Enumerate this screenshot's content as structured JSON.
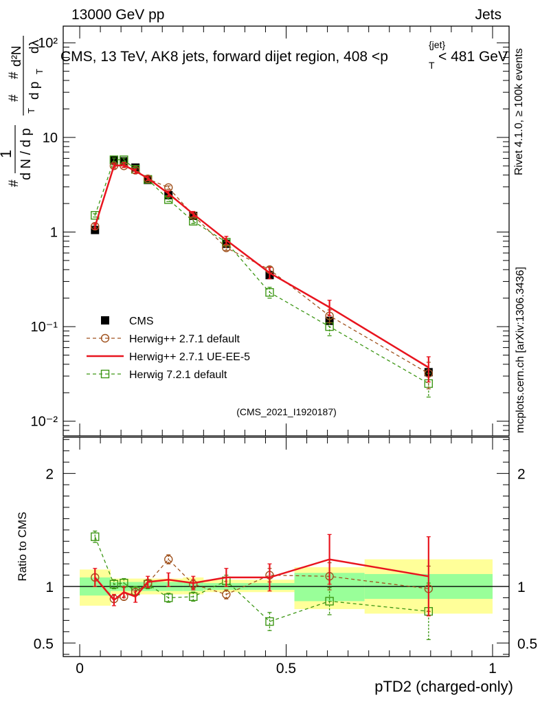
{
  "header": {
    "left": "13000 GeV pp",
    "right": "Jets"
  },
  "side_labels": {
    "rivet": "Rivet 4.1.0, ≥ 100k events",
    "mcplots": "mcplots.cern.ch [arXiv:1306.3436]"
  },
  "colors": {
    "data": "#000000",
    "herwigpp_default": "#a0521e",
    "herwigpp_ueee5": "#e8141e",
    "herwig721": "#3c9614",
    "band_inner": "#99ff99",
    "band_outer": "#ffff99",
    "watermark": "#999999"
  },
  "chart_data": [
    {
      "panel": "main",
      "type": "line",
      "title": "CMS, 13 TeV, AK8 jets, forward dijet region, 408 <p_T^{jet}< 481 GeV",
      "title_parts": {
        "prefix": "CMS, 13 TeV, AK8 jets, forward dijet region, 408 <",
        "p": "p",
        "sub": "T",
        "sup": "{jet}",
        "suffix": "< 481 GeV"
      },
      "ylabel_parts": [
        "#",
        "1",
        "d N / d p",
        "T",
        "#",
        "d p",
        "T",
        "dλ",
        "d²N"
      ],
      "watermark": "(CMS_2021_I1920187)",
      "yscale": "log",
      "ylim": [
        0.007,
        150
      ],
      "xlim": [
        -0.04,
        1.04
      ],
      "ytick_labels": {
        "1e-2": "10⁻²",
        "1e-1": "10⁻¹",
        "1": "1",
        "10": "10",
        "1e2": "10²"
      },
      "legend_position": "bottom-left",
      "series": [
        {
          "name": "CMS",
          "style": "data",
          "x": [
            0.037,
            0.083,
            0.107,
            0.135,
            0.165,
            0.215,
            0.275,
            0.355,
            0.46,
            0.605,
            0.845
          ],
          "y": [
            1.05,
            5.7,
            5.6,
            4.8,
            3.55,
            2.45,
            1.48,
            0.75,
            0.35,
            0.115,
            0.033
          ]
        },
        {
          "name": "Herwig++ 2.7.1 default",
          "style": "dashed-circle",
          "x": [
            0.037,
            0.083,
            0.107,
            0.135,
            0.165,
            0.215,
            0.275,
            0.355,
            0.46,
            0.605,
            0.845
          ],
          "y": [
            1.15,
            5.0,
            5.0,
            4.5,
            3.65,
            2.95,
            1.5,
            0.68,
            0.4,
            0.13,
            0.032
          ],
          "yerr": [
            0.04,
            0.15,
            0.15,
            0.12,
            0.1,
            0.12,
            0.06,
            0.04,
            0.03,
            0.02,
            0.01
          ]
        },
        {
          "name": "Herwig++ 2.7.1 UE-EE-5",
          "style": "solid",
          "x": [
            0.037,
            0.083,
            0.107,
            0.135,
            0.165,
            0.215,
            0.275,
            0.355,
            0.46,
            0.605,
            0.845
          ],
          "y": [
            1.15,
            5.0,
            5.1,
            4.4,
            3.7,
            2.55,
            1.55,
            0.82,
            0.37,
            0.16,
            0.037
          ],
          "yerr": [
            0.08,
            0.3,
            0.3,
            0.25,
            0.2,
            0.18,
            0.1,
            0.08,
            0.05,
            0.03,
            0.011
          ]
        },
        {
          "name": "Herwig 7.2.1 default",
          "style": "dashed-square",
          "x": [
            0.037,
            0.083,
            0.107,
            0.135,
            0.165,
            0.215,
            0.275,
            0.355,
            0.46,
            0.605,
            0.845
          ],
          "y": [
            1.5,
            5.8,
            5.8,
            4.6,
            3.6,
            2.2,
            1.3,
            0.78,
            0.23,
            0.1,
            0.025
          ],
          "yerr": [
            0.06,
            0.25,
            0.25,
            0.2,
            0.12,
            0.1,
            0.07,
            0.05,
            0.03,
            0.02,
            0.007
          ]
        }
      ]
    },
    {
      "panel": "ratio",
      "type": "line",
      "ylabel": "Ratio to CMS",
      "xlabel": "pTD2 (charged-only)",
      "ylim": [
        0.38,
        2.32
      ],
      "xlim": [
        -0.04,
        1.04
      ],
      "yticks": [
        0.5,
        1,
        2
      ],
      "ytick_labels": [
        "0.5",
        "1",
        "2"
      ],
      "xticks": [
        0,
        0.5,
        1
      ],
      "xtick_labels": [
        "0",
        "0.5",
        "1"
      ],
      "bands": [
        {
          "x0": 0.0,
          "x1": 0.075,
          "inner": [
            0.92,
            1.08
          ],
          "outer": [
            0.83,
            1.15
          ]
        },
        {
          "x0": 0.075,
          "x1": 0.25,
          "inner": [
            0.96,
            1.04
          ],
          "outer": [
            0.93,
            1.07
          ]
        },
        {
          "x0": 0.25,
          "x1": 0.3,
          "inner": [
            0.96,
            1.04
          ],
          "outer": [
            0.93,
            1.08
          ]
        },
        {
          "x0": 0.3,
          "x1": 0.41,
          "inner": [
            0.97,
            1.03
          ],
          "outer": [
            0.95,
            1.06
          ]
        },
        {
          "x0": 0.41,
          "x1": 0.52,
          "inner": [
            0.97,
            1.03
          ],
          "outer": [
            0.95,
            1.06
          ]
        },
        {
          "x0": 0.52,
          "x1": 0.69,
          "inner": [
            0.87,
            1.12
          ],
          "outer": [
            0.8,
            1.17
          ]
        },
        {
          "x0": 0.69,
          "x1": 1.0,
          "inner": [
            0.89,
            1.11
          ],
          "outer": [
            0.76,
            1.24
          ]
        }
      ],
      "series": [
        {
          "name": "Herwig++ 2.7.1 default",
          "style": "dashed-circle",
          "x": [
            0.037,
            0.083,
            0.107,
            0.135,
            0.165,
            0.215,
            0.275,
            0.355,
            0.46,
            0.605,
            0.845
          ],
          "y": [
            1.08,
            0.89,
            0.91,
            0.95,
            1.03,
            1.24,
            1.02,
            0.93,
            1.1,
            1.09,
            0.98
          ],
          "yerr": [
            0.03,
            0.03,
            0.03,
            0.03,
            0.03,
            0.04,
            0.04,
            0.04,
            0.06,
            0.12,
            0.2
          ]
        },
        {
          "name": "Herwig++ 2.7.1 UE-EE-5",
          "style": "solid",
          "x": [
            0.037,
            0.083,
            0.107,
            0.135,
            0.165,
            0.215,
            0.275,
            0.355,
            0.46,
            0.605,
            0.845
          ],
          "y": [
            1.08,
            0.88,
            0.95,
            0.91,
            1.04,
            1.06,
            1.03,
            1.08,
            1.08,
            1.24,
            1.09
          ],
          "yerr": [
            0.08,
            0.05,
            0.05,
            0.05,
            0.05,
            0.06,
            0.06,
            0.08,
            0.12,
            0.22,
            0.35
          ]
        },
        {
          "name": "Herwig 7.2.1 default",
          "style": "dashed-square",
          "x": [
            0.037,
            0.083,
            0.107,
            0.135,
            0.165,
            0.215,
            0.275,
            0.355,
            0.46,
            0.605,
            0.845
          ],
          "y": [
            1.44,
            1.02,
            1.03,
            0.96,
            1.02,
            0.9,
            0.91,
            1.05,
            0.69,
            0.87,
            0.78
          ],
          "yerr": [
            0.05,
            0.04,
            0.04,
            0.04,
            0.04,
            0.04,
            0.04,
            0.05,
            0.08,
            0.12,
            0.25
          ]
        }
      ]
    }
  ]
}
